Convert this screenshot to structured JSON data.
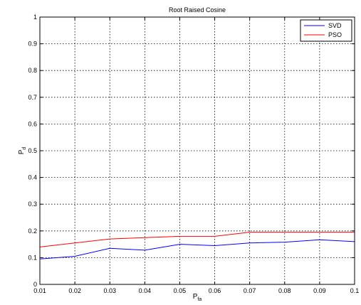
{
  "chart_data": {
    "type": "line",
    "title": "Root Raised Cosine",
    "xlabel": "P",
    "xlabel_sub": "fa",
    "ylabel": "P",
    "ylabel_sub": "d",
    "xlim": [
      0.01,
      0.1
    ],
    "ylim": [
      0,
      1
    ],
    "xticks": [
      "0.01",
      "0.02",
      "0.03",
      "0.04",
      "0.05",
      "0.06",
      "0.07",
      "0.08",
      "0.09",
      "0.1"
    ],
    "yticks": [
      "0",
      "0.1",
      "0.2",
      "0.3",
      "0.4",
      "0.5",
      "0.6",
      "0.7",
      "0.8",
      "0.9",
      "1"
    ],
    "grid": true,
    "legend_position": "top-right",
    "x": [
      0.01,
      0.02,
      0.03,
      0.04,
      0.05,
      0.06,
      0.07,
      0.08,
      0.09,
      0.1
    ],
    "series": [
      {
        "name": "SVD",
        "color": "#0000ff",
        "values": [
          0.095,
          0.105,
          0.135,
          0.128,
          0.15,
          0.145,
          0.155,
          0.158,
          0.167,
          0.16
        ]
      },
      {
        "name": "PSO",
        "color": "#ff0000",
        "values": [
          0.14,
          0.155,
          0.17,
          0.175,
          0.18,
          0.18,
          0.195,
          0.195,
          0.195,
          0.195
        ]
      }
    ]
  }
}
